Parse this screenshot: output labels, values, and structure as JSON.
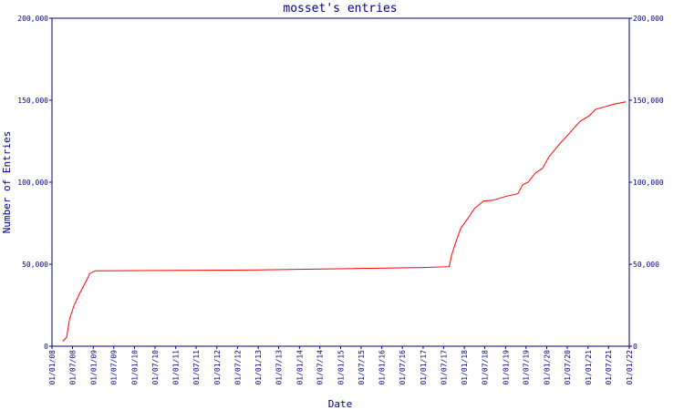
{
  "chart_data": {
    "type": "line",
    "title": "mosset's entries",
    "x_label": "Date",
    "y_label": "Number of Entries",
    "xlim": [
      "2008-01-01",
      "2022-01-01"
    ],
    "xticks": [
      {
        "value": "2008-01-01",
        "label": "01/01/08"
      },
      {
        "value": "2008-07-01",
        "label": "01/07/08"
      },
      {
        "value": "2009-01-01",
        "label": "01/01/09"
      },
      {
        "value": "2009-07-01",
        "label": "01/07/09"
      },
      {
        "value": "2010-01-01",
        "label": "01/01/10"
      },
      {
        "value": "2010-07-01",
        "label": "01/07/10"
      },
      {
        "value": "2011-01-01",
        "label": "01/01/11"
      },
      {
        "value": "2011-07-01",
        "label": "01/07/11"
      },
      {
        "value": "2012-01-01",
        "label": "01/01/12"
      },
      {
        "value": "2012-07-01",
        "label": "01/07/12"
      },
      {
        "value": "2013-01-01",
        "label": "01/01/13"
      },
      {
        "value": "2013-07-01",
        "label": "01/07/13"
      },
      {
        "value": "2014-01-01",
        "label": "01/01/14"
      },
      {
        "value": "2014-07-01",
        "label": "01/07/14"
      },
      {
        "value": "2015-01-01",
        "label": "01/01/15"
      },
      {
        "value": "2015-07-01",
        "label": "01/07/15"
      },
      {
        "value": "2016-01-01",
        "label": "01/01/16"
      },
      {
        "value": "2016-07-01",
        "label": "01/07/16"
      },
      {
        "value": "2017-01-01",
        "label": "01/01/17"
      },
      {
        "value": "2017-07-01",
        "label": "01/07/17"
      },
      {
        "value": "2018-01-01",
        "label": "01/01/18"
      },
      {
        "value": "2018-07-01",
        "label": "01/07/18"
      },
      {
        "value": "2019-01-01",
        "label": "01/01/19"
      },
      {
        "value": "2019-07-01",
        "label": "01/07/19"
      },
      {
        "value": "2020-01-01",
        "label": "01/01/20"
      },
      {
        "value": "2020-07-01",
        "label": "01/07/20"
      },
      {
        "value": "2021-01-01",
        "label": "01/01/21"
      },
      {
        "value": "2021-07-01",
        "label": "01/07/21"
      },
      {
        "value": "2022-01-01",
        "label": "01/01/22"
      }
    ],
    "ylim": [
      0,
      200000
    ],
    "yticks": [
      0,
      {
        "value": 50000,
        "label": "50,000"
      },
      {
        "value": 100000,
        "label": "100,000"
      },
      {
        "value": 150000,
        "label": "150,000"
      },
      {
        "value": 200000,
        "label": "200,000"
      }
    ],
    "grid": false,
    "x": [
      "2008-04-05",
      "2008-05-10",
      "2008-06-05",
      "2008-07-15",
      "2008-09-01",
      "2008-11-01",
      "2008-12-01",
      "2009-01-20",
      "2013-01-01",
      "2014-05-01",
      "2015-09-01",
      "2017-01-01",
      "2017-08-20",
      "2017-09-10",
      "2017-10-20",
      "2017-12-01",
      "2018-02-01",
      "2018-04-01",
      "2018-06-20",
      "2018-09-10",
      "2019-01-10",
      "2019-04-20",
      "2019-06-01",
      "2019-07-20",
      "2019-09-20",
      "2019-11-25",
      "2020-01-20",
      "2020-04-20",
      "2020-07-15",
      "2020-10-20",
      "2021-01-10",
      "2021-03-10",
      "2021-05-30",
      "2021-08-10",
      "2021-12-01"
    ],
    "series": [
      {
        "name": "entries",
        "color": "#ff0000",
        "values": [
          3000,
          5500,
          16700,
          25000,
          32000,
          40000,
          44400,
          46000,
          46500,
          47000,
          47500,
          48000,
          48500,
          55500,
          64000,
          72000,
          78000,
          84000,
          88500,
          89000,
          91500,
          93000,
          98500,
          100000,
          105500,
          108500,
          115500,
          123000,
          129500,
          137000,
          140500,
          144500,
          146000,
          147500,
          149000
        ]
      }
    ]
  }
}
